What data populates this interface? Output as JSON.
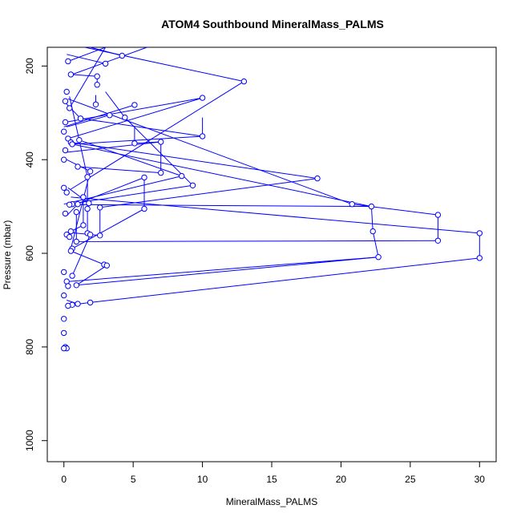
{
  "chart_data": {
    "type": "line",
    "title": "ATOM4 Southbound MineralMass_PALMS",
    "xlabel": "MineralMass_PALMS",
    "ylabel": "Pressure (mbar)",
    "xlim": [
      -1.2,
      31.2
    ],
    "ylim": [
      1045,
      160
    ],
    "y_inverted": true,
    "xticks": [
      0,
      5,
      10,
      15,
      20,
      25,
      30
    ],
    "yticks": [
      200,
      400,
      600,
      800,
      1000
    ],
    "grid": false,
    "legend": "none",
    "series_color": "#0000ff",
    "marker": "open-circle",
    "series": [
      {
        "points": [
          [
            13.0,
            233
          ],
          [
            2.4,
            222
          ],
          [
            0.5,
            218
          ],
          [
            4.2,
            178
          ],
          [
            3.0,
            195
          ],
          [
            0.3,
            190
          ],
          [
            2.4,
            240
          ],
          [
            0.2,
            255
          ],
          [
            10.0,
            268
          ],
          [
            0.1,
            275
          ],
          [
            2.3,
            282
          ],
          [
            5.1,
            283
          ],
          [
            0.4,
            290
          ],
          [
            3.3,
            305
          ],
          [
            4.4,
            310
          ],
          [
            1.2,
            312
          ],
          [
            0.1,
            320
          ],
          [
            0.0,
            340
          ],
          [
            10.0,
            350
          ],
          [
            0.3,
            355
          ],
          [
            7.0,
            362
          ],
          [
            1.1,
            358
          ],
          [
            0.5,
            363
          ],
          [
            5.1,
            365
          ],
          [
            0.6,
            367
          ],
          [
            0.1,
            380
          ],
          [
            0.0,
            400
          ],
          [
            1.0,
            415
          ],
          [
            7.0,
            428
          ],
          [
            8.5,
            435
          ],
          [
            18.3,
            440
          ],
          [
            5.8,
            438
          ],
          [
            1.9,
            425
          ],
          [
            1.7,
            437
          ],
          [
            9.3,
            455
          ],
          [
            0.0,
            460
          ],
          [
            0.2,
            470
          ],
          [
            1.4,
            480
          ],
          [
            20.8,
            495
          ],
          [
            1.8,
            493
          ],
          [
            0.6,
            495
          ],
          [
            1.0,
            495
          ],
          [
            0.4,
            496
          ],
          [
            22.2,
            500
          ],
          [
            2.6,
            502
          ],
          [
            5.8,
            505
          ],
          [
            1.7,
            505
          ],
          [
            0.9,
            512
          ],
          [
            0.1,
            515
          ],
          [
            27.0,
            518
          ],
          [
            1.4,
            540
          ],
          [
            0.5,
            553
          ],
          [
            22.3,
            553
          ],
          [
            30.0,
            557
          ],
          [
            0.2,
            560
          ],
          [
            1.7,
            557
          ],
          [
            2.6,
            562
          ],
          [
            1.9,
            560
          ],
          [
            0.4,
            565
          ],
          [
            27.0,
            573
          ],
          [
            0.9,
            575
          ],
          [
            0.6,
            590
          ],
          [
            0.5,
            595
          ],
          [
            22.7,
            608
          ],
          [
            30.0,
            610
          ],
          [
            2.9,
            624
          ],
          [
            3.1,
            626
          ],
          [
            0.0,
            640
          ],
          [
            0.6,
            648
          ],
          [
            0.2,
            660
          ],
          [
            0.9,
            668
          ],
          [
            0.3,
            670
          ],
          [
            0.0,
            690
          ],
          [
            1.9,
            705
          ],
          [
            1.0,
            708
          ],
          [
            0.6,
            710
          ],
          [
            0.3,
            712
          ],
          [
            0.0,
            740
          ],
          [
            0.0,
            770
          ],
          [
            0.1,
            800
          ],
          [
            0.2,
            803
          ],
          [
            0.0,
            803
          ]
        ],
        "segments": [
          [
            1.5,
            160,
            13.0,
            233
          ],
          [
            13.0,
            233,
            0.5,
            463
          ],
          [
            3.0,
            160,
            0.4,
            290
          ],
          [
            0.3,
            190,
            3.0,
            160
          ],
          [
            4.2,
            178,
            1.9,
            160
          ],
          [
            6.0,
            160,
            0.6,
            218
          ],
          [
            2.4,
            222,
            0.5,
            218
          ],
          [
            2.4,
            222,
            2.4,
            240
          ],
          [
            3.0,
            195,
            0.2,
            175
          ],
          [
            0.1,
            320,
            10.0,
            268
          ],
          [
            10.0,
            268,
            0.3,
            355
          ],
          [
            2.3,
            282,
            2.3,
            262
          ],
          [
            5.1,
            283,
            0.0,
            330
          ],
          [
            3.3,
            305,
            0.2,
            330
          ],
          [
            4.4,
            310,
            3.0,
            255
          ],
          [
            4.4,
            310,
            9.3,
            455
          ],
          [
            1.2,
            312,
            0.0,
            275
          ],
          [
            1.2,
            312,
            10.0,
            350
          ],
          [
            10.0,
            350,
            0.6,
            367
          ],
          [
            10.0,
            350,
            10.0,
            310
          ],
          [
            5.1,
            365,
            5.1,
            330
          ],
          [
            5.1,
            365,
            7.0,
            362
          ],
          [
            7.0,
            362,
            0.0,
            385
          ],
          [
            7.0,
            362,
            7.0,
            428
          ],
          [
            1.1,
            358,
            8.5,
            435
          ],
          [
            0.5,
            363,
            18.3,
            440
          ],
          [
            18.3,
            440,
            2.6,
            502
          ],
          [
            0.6,
            367,
            22.2,
            500
          ],
          [
            22.2,
            500,
            0.4,
            496
          ],
          [
            22.2,
            500,
            22.3,
            553
          ],
          [
            22.3,
            553,
            22.7,
            608
          ],
          [
            22.7,
            608,
            0.4,
            660
          ],
          [
            20.8,
            495,
            27.0,
            518
          ],
          [
            27.0,
            518,
            27.0,
            573
          ],
          [
            27.0,
            573,
            0.9,
            575
          ],
          [
            0.3,
            270,
            20.8,
            495
          ],
          [
            0.5,
            480,
            30.0,
            557
          ],
          [
            30.0,
            557,
            30.0,
            610
          ],
          [
            30.0,
            610,
            1.9,
            705
          ],
          [
            1.9,
            705,
            0.6,
            710
          ],
          [
            0.9,
            668,
            22.7,
            608
          ],
          [
            3.1,
            626,
            0.9,
            668
          ],
          [
            2.9,
            624,
            0.5,
            595
          ],
          [
            0.5,
            590,
            1.9,
            425
          ],
          [
            1.9,
            425,
            0.2,
            400
          ],
          [
            1.7,
            437,
            0.4,
            265
          ],
          [
            1.7,
            437,
            1.7,
            505
          ],
          [
            1.7,
            505,
            1.7,
            557
          ],
          [
            5.8,
            438,
            5.8,
            505
          ],
          [
            5.8,
            438,
            0.9,
            495
          ],
          [
            5.8,
            505,
            0.6,
            590
          ],
          [
            8.5,
            435,
            0.0,
            495
          ],
          [
            7.0,
            428,
            1.0,
            415
          ],
          [
            9.3,
            455,
            0.8,
            493
          ],
          [
            2.6,
            502,
            2.6,
            562
          ],
          [
            2.6,
            562,
            0.2,
            555
          ],
          [
            1.4,
            480,
            1.4,
            540
          ],
          [
            1.4,
            540,
            0.5,
            553
          ],
          [
            0.9,
            512,
            0.9,
            575
          ],
          [
            1.8,
            493,
            0.3,
            460
          ],
          [
            1.0,
            495,
            0.2,
            520
          ],
          [
            0.6,
            648,
            1.9,
            560
          ],
          [
            1.0,
            708,
            0.2,
            700
          ]
        ]
      }
    ]
  }
}
